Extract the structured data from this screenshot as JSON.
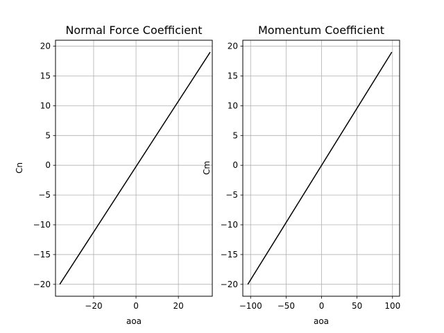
{
  "figure": {
    "background": "#ffffff"
  },
  "chart_data": [
    {
      "type": "line",
      "title": "Normal Force Coefficient",
      "xlabel": "aoa",
      "ylabel": "Cn",
      "xlim": [
        -38,
        36
      ],
      "ylim": [
        -22,
        21
      ],
      "xticks": [
        -20,
        0,
        20
      ],
      "xtick_labels": [
        "−20",
        "0",
        "20"
      ],
      "yticks": [
        -20,
        -15,
        -10,
        -5,
        0,
        5,
        10,
        15,
        20
      ],
      "ytick_labels": [
        "−20",
        "−15",
        "−10",
        "−5",
        "0",
        "5",
        "10",
        "15",
        "20"
      ],
      "grid": true,
      "grid_color": "#b0b0b0",
      "line_color": "#000000",
      "series": [
        {
          "x": [
            -36,
            35
          ],
          "y": [
            -20,
            19
          ]
        }
      ]
    },
    {
      "type": "line",
      "title": "Momentum Coefficient",
      "xlabel": "aoa",
      "ylabel": "Cm",
      "xlim": [
        -111,
        110
      ],
      "ylim": [
        -22,
        21
      ],
      "xticks": [
        -100,
        -50,
        0,
        50,
        100
      ],
      "xtick_labels": [
        "−100",
        "−50",
        "0",
        "50",
        "100"
      ],
      "yticks": [
        -20,
        -15,
        -10,
        -5,
        0,
        5,
        10,
        15,
        20
      ],
      "ytick_labels": [
        "−20",
        "−15",
        "−10",
        "−5",
        "0",
        "5",
        "10",
        "15",
        "20"
      ],
      "grid": true,
      "grid_color": "#b0b0b0",
      "line_color": "#000000",
      "series": [
        {
          "x": [
            -104,
            99
          ],
          "y": [
            -20,
            19
          ]
        }
      ]
    }
  ]
}
